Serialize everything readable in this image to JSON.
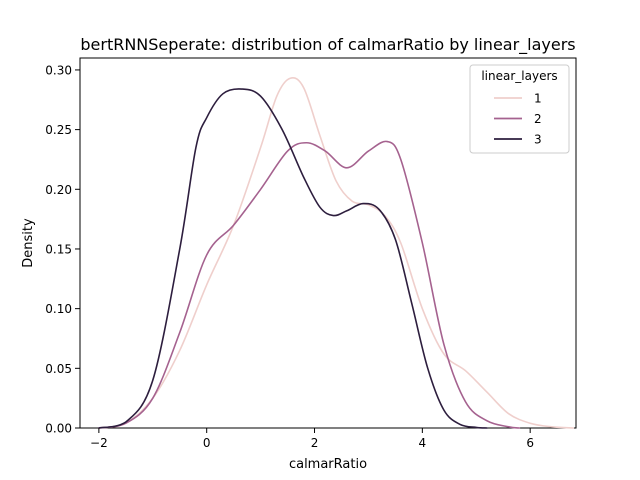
{
  "chart_data": {
    "type": "line",
    "title": "bertRNNSeperate: distribution of calmarRatio by linear_layers",
    "xlabel": "calmarRatio",
    "ylabel": "Density",
    "xlim": [
      -2.35,
      6.85
    ],
    "ylim": [
      0,
      0.31
    ],
    "xticks": [
      -2,
      0,
      2,
      4,
      6
    ],
    "xtick_labels": [
      "−2",
      "0",
      "2",
      "4",
      "6"
    ],
    "yticks": [
      0.0,
      0.05,
      0.1,
      0.15,
      0.2,
      0.25,
      0.3
    ],
    "ytick_labels": [
      "0.00",
      "0.05",
      "0.10",
      "0.15",
      "0.20",
      "0.25",
      "0.30"
    ],
    "grid": false,
    "legend": {
      "title": "linear_layers",
      "position": "top-right"
    },
    "series": [
      {
        "name": "1",
        "color": "#efcfcc",
        "x": [
          -2.0,
          -1.5,
          -1.0,
          -0.5,
          0.0,
          0.5,
          1.0,
          1.3,
          1.55,
          1.8,
          2.1,
          2.4,
          2.7,
          3.0,
          3.3,
          3.6,
          4.0,
          4.4,
          4.8,
          5.2,
          5.6,
          6.0,
          6.4,
          6.8
        ],
        "y": [
          0.0,
          0.004,
          0.025,
          0.065,
          0.12,
          0.17,
          0.235,
          0.278,
          0.293,
          0.285,
          0.245,
          0.207,
          0.19,
          0.187,
          0.178,
          0.155,
          0.1,
          0.062,
          0.048,
          0.03,
          0.012,
          0.004,
          0.001,
          0.0
        ]
      },
      {
        "name": "2",
        "color": "#a5628f",
        "x": [
          -2.0,
          -1.5,
          -1.0,
          -0.5,
          0.0,
          0.5,
          1.0,
          1.5,
          1.85,
          2.2,
          2.6,
          3.0,
          3.35,
          3.6,
          4.0,
          4.4,
          4.8,
          5.2,
          5.6,
          5.8
        ],
        "y": [
          0.0,
          0.004,
          0.025,
          0.08,
          0.145,
          0.17,
          0.2,
          0.232,
          0.239,
          0.232,
          0.218,
          0.232,
          0.24,
          0.225,
          0.155,
          0.07,
          0.022,
          0.006,
          0.001,
          0.0
        ]
      },
      {
        "name": "3",
        "color": "#2d1e3e",
        "x": [
          -2.0,
          -1.5,
          -1.0,
          -0.5,
          -0.2,
          0.0,
          0.3,
          0.65,
          1.0,
          1.4,
          1.8,
          2.1,
          2.35,
          2.6,
          2.9,
          3.2,
          3.5,
          3.8,
          4.1,
          4.4,
          4.7,
          5.0,
          5.2
        ],
        "y": [
          0.0,
          0.005,
          0.04,
          0.15,
          0.235,
          0.26,
          0.28,
          0.284,
          0.278,
          0.25,
          0.21,
          0.185,
          0.178,
          0.182,
          0.188,
          0.183,
          0.158,
          0.105,
          0.05,
          0.015,
          0.003,
          0.0005,
          0.0
        ]
      }
    ]
  }
}
